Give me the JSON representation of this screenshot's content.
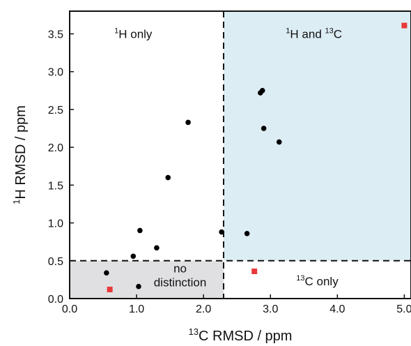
{
  "chart_data": {
    "type": "scatter",
    "title": "",
    "xlabel": {
      "sup": "13",
      "text": "C RMSD / ppm"
    },
    "ylabel": {
      "sup": "1",
      "text": "H RMSD  / ppm"
    },
    "xlim": [
      0.0,
      5.1
    ],
    "ylim": [
      0.0,
      3.8
    ],
    "xticks": [
      "0.0",
      "1.0",
      "2.0",
      "3.0",
      "4.0",
      "5.0"
    ],
    "yticks": [
      "0.0",
      "0.5",
      "1.0",
      "1.5",
      "2.0",
      "2.5",
      "3.0",
      "3.5"
    ],
    "grid": false,
    "thresholds": {
      "x": 2.3,
      "y": 0.5
    },
    "regions": [
      {
        "name": "1H only",
        "label_parts": [
          {
            "sup": "1"
          },
          {
            "text": "H only"
          }
        ],
        "x": 0.95,
        "y": 3.5,
        "fill": "none"
      },
      {
        "name": "1H and 13C",
        "label_parts": [
          {
            "sup": "1"
          },
          {
            "text": "H and "
          },
          {
            "sup": "13"
          },
          {
            "text": "C"
          }
        ],
        "x": 3.65,
        "y": 3.5,
        "fill": "#dcedf4"
      },
      {
        "name": "13C only",
        "label_parts": [
          {
            "sup": "13"
          },
          {
            "text": "C only"
          }
        ],
        "x": 3.7,
        "y": 0.23,
        "fill": "none"
      },
      {
        "name": "no distinction",
        "lines": [
          "no",
          "distinction"
        ],
        "x": 1.65,
        "y": 0.31,
        "fill": "#e0e0e2"
      }
    ],
    "colors": {
      "circle": "#000000",
      "square": "#e8393a"
    },
    "series": [
      {
        "marker": "circle",
        "x": [
          0.55,
          0.95,
          1.03,
          1.05,
          1.3,
          1.47,
          1.77,
          2.27,
          2.65,
          2.85,
          2.88,
          2.9,
          3.13
        ],
        "y": [
          0.34,
          0.56,
          0.16,
          0.9,
          0.67,
          1.6,
          2.33,
          0.88,
          0.86,
          2.72,
          2.75,
          2.25,
          2.07
        ]
      },
      {
        "marker": "square",
        "x": [
          0.6,
          2.76,
          5.0
        ],
        "y": [
          0.12,
          0.36,
          3.61
        ]
      }
    ]
  }
}
